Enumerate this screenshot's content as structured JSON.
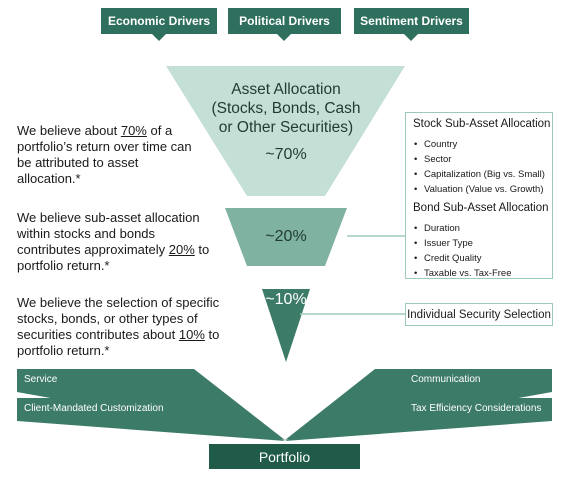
{
  "drivers": [
    "Economic Drivers",
    "Political Drivers",
    "Sentiment Drivers"
  ],
  "funnel": {
    "top": {
      "line1": "Asset Allocation",
      "line2": "(Stocks, Bonds, Cash",
      "line3": "or Other Securities)",
      "pct": "~70%"
    },
    "middle_pct": "~20%",
    "bottom_pct": "~10%"
  },
  "beliefs": [
    {
      "pre": "We believe about ",
      "u": "70%",
      "post": " of a portfolio’s return over time can be attributed to asset allocation.*"
    },
    {
      "pre": "We believe sub-asset allocation within stocks and bonds contributes approximately ",
      "u": "20%",
      "post": " to portfolio return.*"
    },
    {
      "pre": "We believe the selection of specific stocks, bonds, or other types of securities contributes about ",
      "u": "10%",
      "post": " to portfolio return.*"
    }
  ],
  "stock_sub": {
    "title": "Stock Sub-Asset Allocation",
    "items": [
      "Country",
      "Sector",
      "Capitalization (Big vs. Small)",
      "Valuation (Value vs. Growth)"
    ]
  },
  "bond_sub": {
    "title": "Bond Sub-Asset Allocation",
    "items": [
      "Duration",
      "Issuer Type",
      "Credit Quality",
      "Taxable vs. Tax-Free"
    ]
  },
  "security_selection": "Individual Security Selection",
  "ribbons": {
    "left_top": "Service",
    "left_bottom": "Client-Mandated Customization",
    "right_top": "Communication",
    "right_bottom": "Tax Efficiency Considerations"
  },
  "portfolio": "Portfolio",
  "colors": {
    "dark_green": "#2f6f5e",
    "funnel_top": "#c4dfd6",
    "funnel_mid": "#7fb2a1",
    "funnel_bottom": "#3d7b69",
    "portfolio": "#1f5b48",
    "box_border": "#9ccbb8"
  }
}
